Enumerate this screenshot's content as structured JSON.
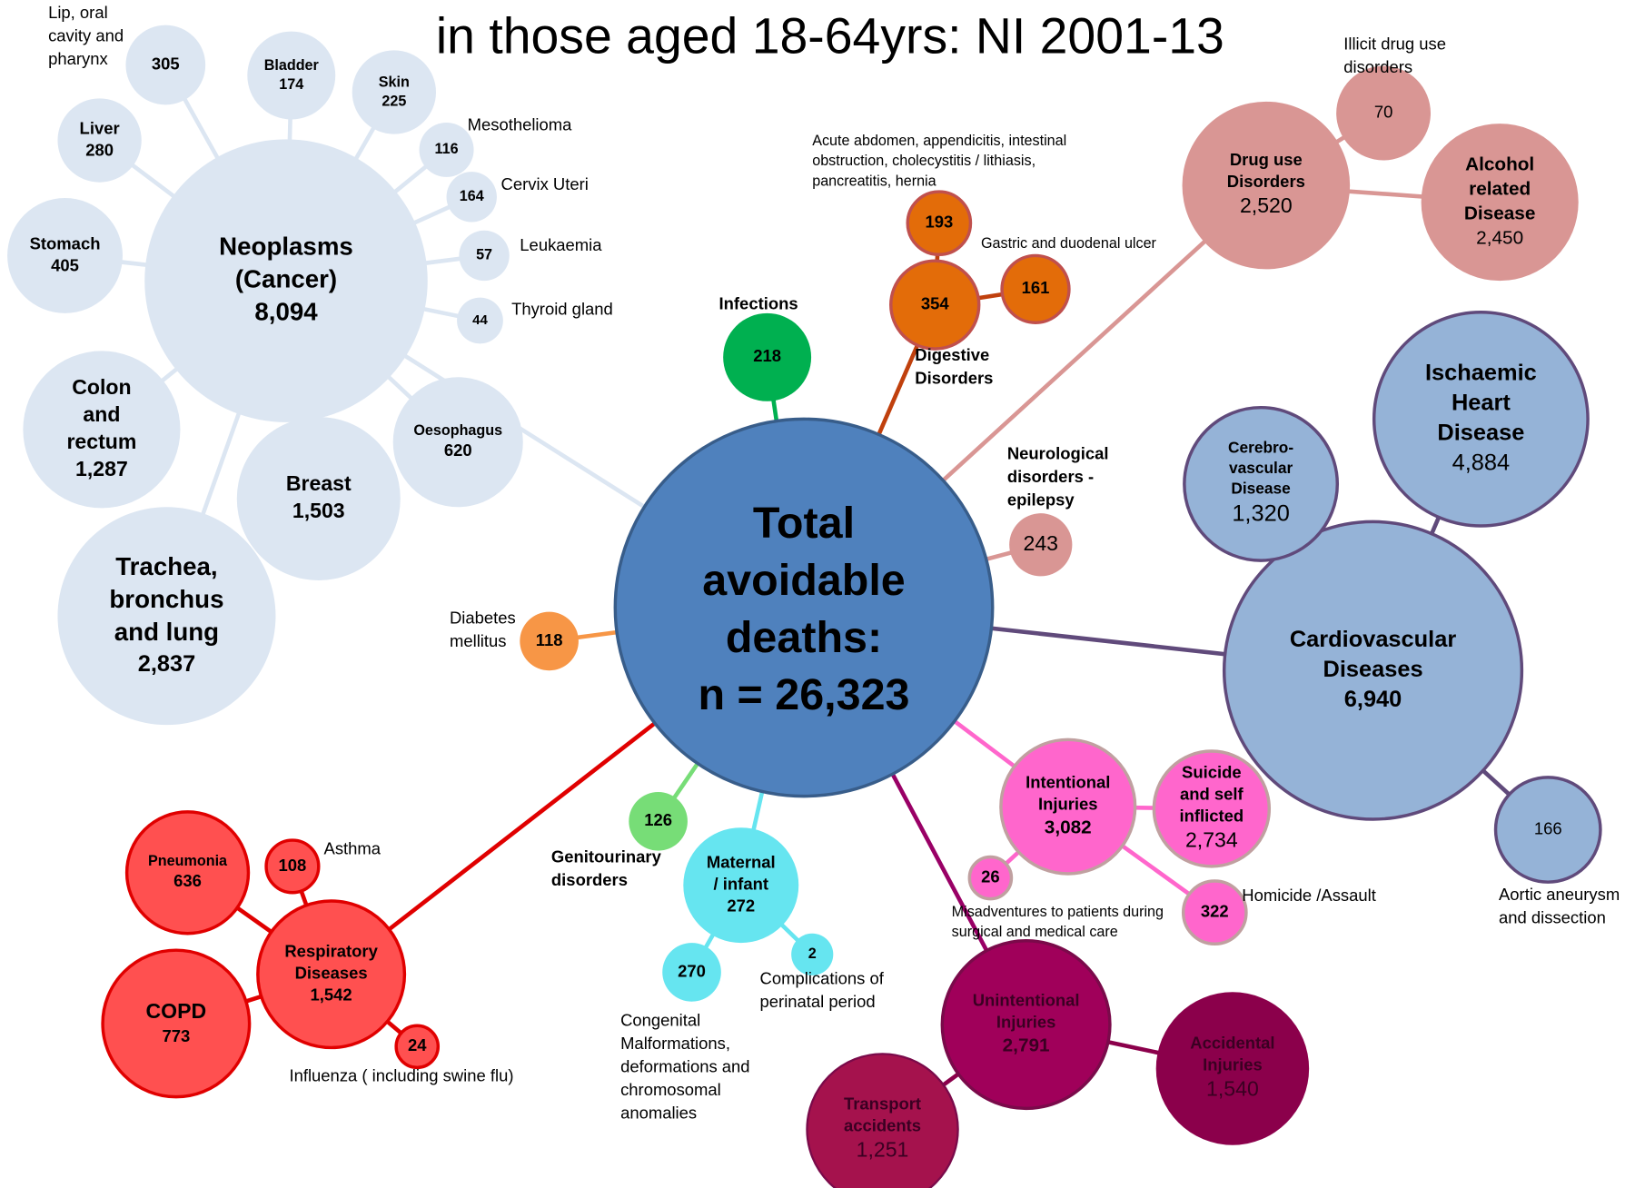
{
  "title": "in those aged 18-64yrs: NI 2001-13",
  "center": {
    "label_lines": [
      "Total",
      "avoidable",
      "deaths:"
    ],
    "value": "n = 26,323"
  },
  "nodes": [
    {
      "label_lines": [
        "Neoplasms",
        "(Cancer)"
      ],
      "value": "8,094"
    },
    {
      "label_lines": [],
      "value": "305",
      "note_lines": [
        "Lip, oral",
        "cavity and",
        "pharynx"
      ]
    },
    {
      "label_lines": [
        "Bladder"
      ],
      "value": "174"
    },
    {
      "label_lines": [
        "Skin"
      ],
      "value": "225"
    },
    {
      "label_lines": [],
      "value": "116",
      "note_lines": [
        "Mesothelioma"
      ]
    },
    {
      "label_lines": [],
      "value": "164",
      "note_lines": [
        "Cervix Uteri"
      ]
    },
    {
      "label_lines": [],
      "value": "57",
      "note_lines": [
        "Leukaemia"
      ]
    },
    {
      "label_lines": [],
      "value": "44",
      "note_lines": [
        "Thyroid gland"
      ]
    },
    {
      "label_lines": [
        "Oesophagus"
      ],
      "value": "620"
    },
    {
      "label_lines": [
        "Breast"
      ],
      "value": "1,503"
    },
    {
      "label_lines": [
        "Trachea,",
        "bronchus",
        "and lung"
      ],
      "value": "2,837"
    },
    {
      "label_lines": [
        "Colon",
        "and",
        "rectum"
      ],
      "value": "1,287"
    },
    {
      "label_lines": [
        "Stomach"
      ],
      "value": "405"
    },
    {
      "label_lines": [
        "Liver"
      ],
      "value": "280"
    },
    {
      "label_lines": [],
      "value": "218",
      "note_lines": [
        "Infections"
      ]
    },
    {
      "label_lines": [],
      "value": "354",
      "note_lines": [
        "Digestive",
        "Disorders"
      ]
    },
    {
      "label_lines": [],
      "value": "193",
      "note_lines": [
        "Acute abdomen, appendicitis, intestinal",
        "obstruction, cholecystitis / lithiasis,",
        "pancreatitis, hernia"
      ]
    },
    {
      "label_lines": [],
      "value": "161",
      "note_lines": [
        "Gastric and duodenal ulcer"
      ]
    },
    {
      "label_lines": [
        "Drug use",
        "Disorders"
      ],
      "value": "2,520"
    },
    {
      "label_lines": [],
      "value": "70",
      "note_lines": [
        "Illicit drug use",
        "disorders"
      ]
    },
    {
      "label_lines": [
        "Alcohol",
        "related",
        "Disease"
      ],
      "value": "2,450"
    },
    {
      "label_lines": [],
      "value": "243",
      "note_lines": [
        "Neurological",
        "disorders -",
        "epilepsy"
      ]
    },
    {
      "label_lines": [
        "Cardiovascular",
        "Diseases"
      ],
      "value": "6,940"
    },
    {
      "label_lines": [
        "Ischaemic",
        "Heart",
        "Disease"
      ],
      "value": "4,884"
    },
    {
      "label_lines": [
        "Cerebro-",
        "vascular",
        "Disease"
      ],
      "value": "1,320"
    },
    {
      "label_lines": [],
      "value": "166",
      "note_lines": [
        "Aortic aneurysm",
        "and dissection"
      ]
    },
    {
      "label_lines": [
        "Intentional",
        "Injuries"
      ],
      "value": "3,082"
    },
    {
      "label_lines": [
        "Suicide",
        "and self",
        "inflicted"
      ],
      "value": "2,734"
    },
    {
      "label_lines": [],
      "value": "322",
      "note_lines": [
        "Homicide /Assault"
      ]
    },
    {
      "label_lines": [],
      "value": "26",
      "note_lines": [
        "Misadventures to patients during",
        "surgical and medical care"
      ]
    },
    {
      "label_lines": [
        "Unintentional",
        "Injuries"
      ],
      "value": "2,791"
    },
    {
      "label_lines": [
        "Accidental",
        "Injuries"
      ],
      "value": "1,540"
    },
    {
      "label_lines": [
        "Transport",
        "accidents"
      ],
      "value": "1,251"
    },
    {
      "label_lines": [
        "Maternal",
        "/ infant"
      ],
      "value": "272"
    },
    {
      "label_lines": [],
      "value": "270",
      "note_lines": [
        "Congenital",
        "Malformations,",
        "deformations and",
        "chromosomal",
        "anomalies"
      ]
    },
    {
      "label_lines": [],
      "value": "2",
      "note_lines": [
        "Complications of",
        "perinatal period"
      ]
    },
    {
      "label_lines": [],
      "value": "126",
      "note_lines": [
        "Genitourinary",
        "disorders"
      ]
    },
    {
      "label_lines": [],
      "value": "118",
      "note_lines": [
        "Diabetes",
        "mellitus"
      ]
    },
    {
      "label_lines": [
        "Respiratory",
        "Diseases"
      ],
      "value": "1,542"
    },
    {
      "label_lines": [
        "Pneumonia"
      ],
      "value": "636"
    },
    {
      "label_lines": [],
      "value": "108",
      "note_lines": [
        "Asthma"
      ]
    },
    {
      "label_lines": [
        "COPD"
      ],
      "value": "773"
    },
    {
      "label_lines": [],
      "value": "24",
      "note_lines": [
        "Influenza ( including swine flu)"
      ]
    }
  ]
}
